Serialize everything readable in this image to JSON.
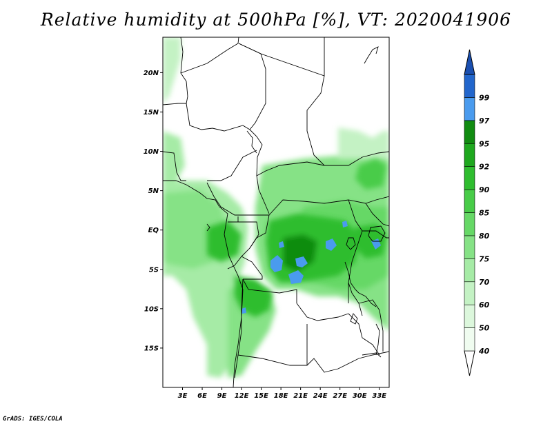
{
  "title": "Relative humidity at 500hPa [%], VT: 2020041906",
  "credit": "GrADS: IGES/COLA",
  "map": {
    "lon_range": [
      0,
      34.5
    ],
    "lat_range": [
      -20,
      24.5
    ],
    "lat_ticks": [
      {
        "value": 20,
        "label": "20N"
      },
      {
        "value": 15,
        "label": "15N"
      },
      {
        "value": 10,
        "label": "10N"
      },
      {
        "value": 5,
        "label": "5N"
      },
      {
        "value": 0,
        "label": "EQ"
      },
      {
        "value": -5,
        "label": "5S"
      },
      {
        "value": -10,
        "label": "10S"
      },
      {
        "value": -15,
        "label": "15S"
      }
    ],
    "lon_ticks": [
      {
        "value": 3,
        "label": "3E"
      },
      {
        "value": 6,
        "label": "6E"
      },
      {
        "value": 9,
        "label": "9E"
      },
      {
        "value": 12,
        "label": "12E"
      },
      {
        "value": 15,
        "label": "15E"
      },
      {
        "value": 18,
        "label": "18E"
      },
      {
        "value": 21,
        "label": "21E"
      },
      {
        "value": 24,
        "label": "24E"
      },
      {
        "value": 27,
        "label": "27E"
      },
      {
        "value": 30,
        "label": "30E"
      },
      {
        "value": 33,
        "label": "33E"
      }
    ]
  },
  "colorbar": {
    "levels": [
      {
        "label": "40",
        "color": "#f0fcf0"
      },
      {
        "label": "50",
        "color": "#dcf7dc"
      },
      {
        "label": "60",
        "color": "#c4f2c4"
      },
      {
        "label": "70",
        "color": "#a6eba6"
      },
      {
        "label": "75",
        "color": "#86e286"
      },
      {
        "label": "80",
        "color": "#66d866"
      },
      {
        "label": "85",
        "color": "#48cc48"
      },
      {
        "label": "90",
        "color": "#2fbd2f"
      },
      {
        "label": "92",
        "color": "#1ea81e"
      },
      {
        "label": "95",
        "color": "#118c11"
      },
      {
        "label": "97",
        "color": "#4a9bee"
      },
      {
        "label": "99",
        "color": "#2266cc"
      }
    ],
    "above_color": "#1a4fb0",
    "below_color": "#ffffff"
  }
}
